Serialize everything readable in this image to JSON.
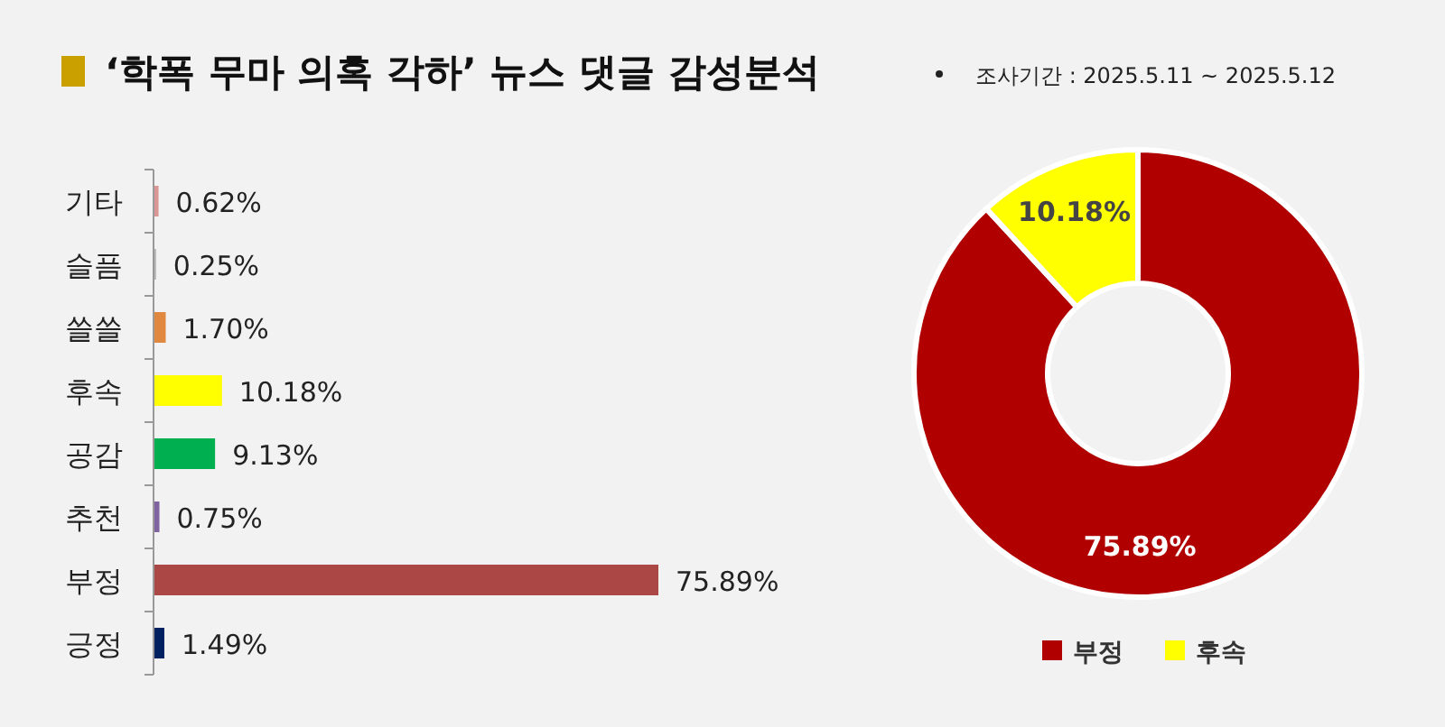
{
  "chart_data": [
    {
      "type": "bar",
      "orientation": "horizontal",
      "title": "‘학폭 무마 의혹 각하’ 뉴스 댓글 감성분석",
      "categories": [
        "기타",
        "슬픔",
        "쓸쓸",
        "후속",
        "공감",
        "추천",
        "부정",
        "긍정"
      ],
      "values": [
        0.62,
        0.25,
        1.7,
        10.18,
        9.13,
        0.75,
        75.89,
        1.49
      ],
      "colors": [
        "#d99694",
        "#b7b7b7",
        "#e0883f",
        "#ffff00",
        "#00b050",
        "#8064a2",
        "#ab4744",
        "#002060"
      ],
      "value_labels": [
        "0.62%",
        "0.25%",
        "1.70%",
        "10.18%",
        "9.13%",
        "0.75%",
        "75.89%",
        "1.49%"
      ]
    },
    {
      "type": "donut",
      "subtitle": "조사기간 : 2025.5.11 ~ 2025.5.12",
      "categories": [
        "부정",
        "후속"
      ],
      "values": [
        75.89,
        10.18
      ],
      "colors": [
        "#b00000",
        "#ffff00"
      ],
      "value_labels": [
        "75.89%",
        "10.18%"
      ],
      "legend": "bottom"
    }
  ]
}
